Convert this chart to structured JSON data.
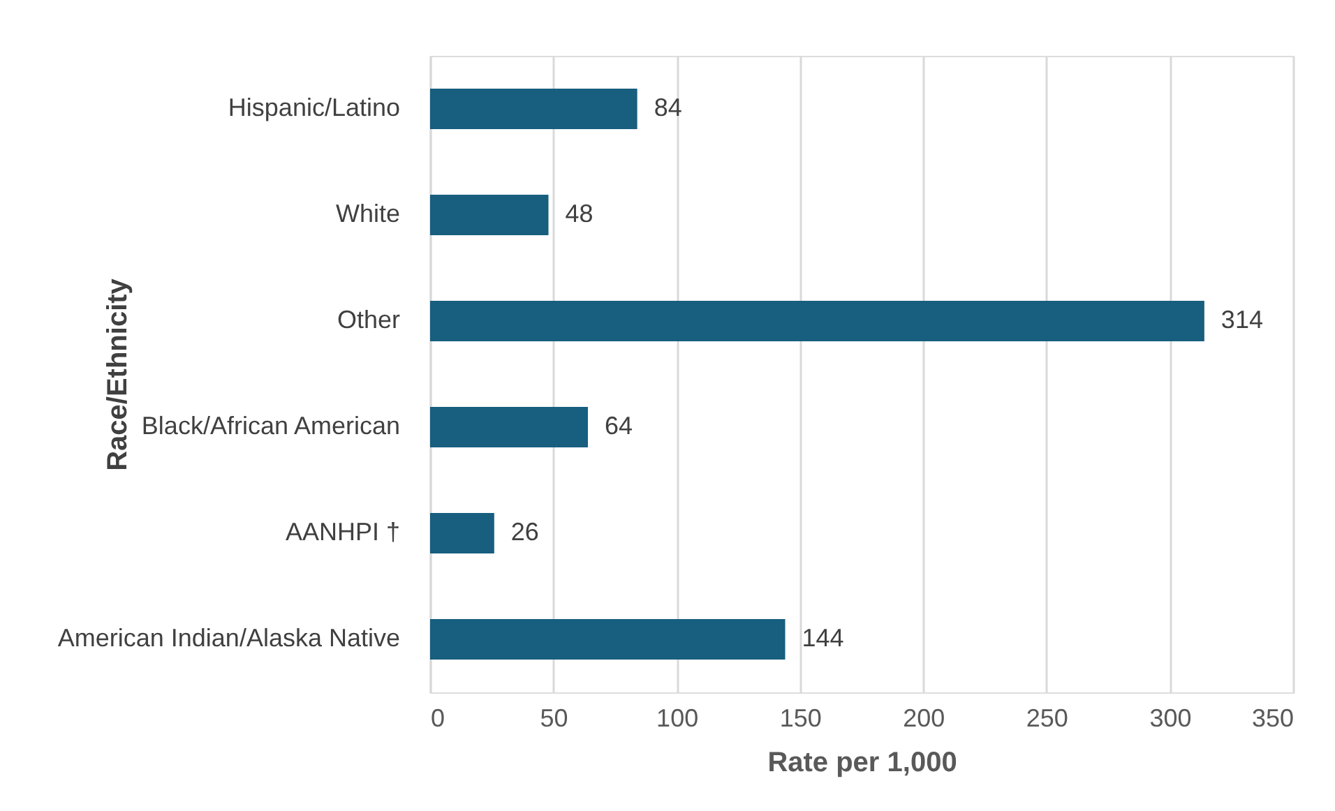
{
  "chart_data": {
    "type": "bar",
    "orientation": "horizontal",
    "categories": [
      "Hispanic/Latino",
      "White",
      "Other",
      "Black/African American",
      "AANHPI †",
      "American Indian/Alaska Native"
    ],
    "values": [
      84,
      48,
      314,
      64,
      26,
      144
    ],
    "color": "#175e7f",
    "xlim": [
      0,
      350
    ],
    "xticks": [
      0,
      50,
      100,
      150,
      200,
      250,
      300,
      350
    ],
    "xlabel": "Rate per 1,000",
    "ylabel": "Race/Ethnicity",
    "grid": "x",
    "data_labels": true
  }
}
